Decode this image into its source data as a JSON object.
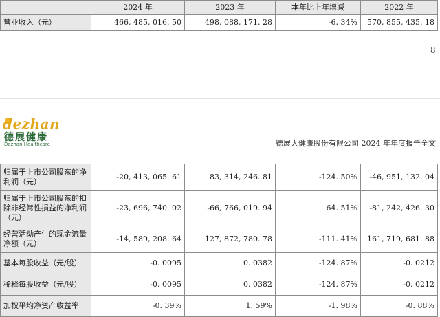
{
  "top_table": {
    "headers": [
      "",
      "2024 年",
      "2023 年",
      "本年比上年增减",
      "2022 年"
    ],
    "rows": [
      {
        "label": "营业收入（元）",
        "values": [
          "466, 485, 016. 50",
          "498, 088, 171. 28",
          "-6. 34%",
          "570, 855, 435. 18"
        ]
      }
    ]
  },
  "page_number": "8",
  "logo": {
    "word": "dezhan",
    "chinese": "德展健康",
    "english": "Dezhan Healthcare",
    "brand_color": "#e2a61f",
    "green": "#2e6b3a"
  },
  "doc_title": "德展大健康股份有限公司 2024 年年度报告全文",
  "main_table": {
    "rows": [
      {
        "label": "归属于上市公司股东的净利润（元）",
        "values": [
          "-20, 413, 065. 61",
          "83, 314, 246. 81",
          "-124. 50%",
          "-46, 951, 132. 04"
        ]
      },
      {
        "label": "归属于上市公司股东的扣除非经常性损益的净利润（元）",
        "values": [
          "-23, 696, 740. 02",
          "-66, 766, 019. 94",
          "64. 51%",
          "-81, 242, 426. 30"
        ]
      },
      {
        "label": "经营活动产生的现金流量净额（元）",
        "values": [
          "-14, 589, 208. 64",
          "127, 872, 780. 78",
          "-111. 41%",
          "161, 719, 681. 88"
        ]
      },
      {
        "label": "基本每股收益（元/股）",
        "values": [
          "-0. 0095",
          "0. 0382",
          "-124. 87%",
          "-0. 0212"
        ]
      },
      {
        "label": "稀释每股收益（元/股）",
        "values": [
          "-0. 0095",
          "0. 0382",
          "-124. 87%",
          "-0. 0212"
        ]
      },
      {
        "label": "加权平均净资产收益率",
        "values": [
          "-0. 39%",
          "1. 59%",
          "-1. 98%",
          "-0. 88%"
        ]
      }
    ]
  }
}
